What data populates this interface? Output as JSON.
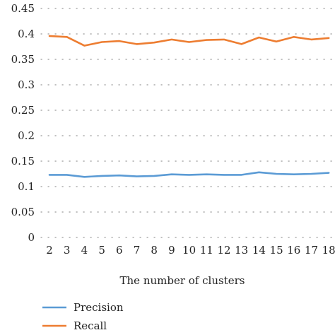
{
  "chart_data": {
    "type": "line",
    "title": "",
    "xlabel": "The number of clusters",
    "ylabel": "",
    "x": [
      2,
      3,
      4,
      5,
      6,
      7,
      8,
      9,
      10,
      11,
      12,
      13,
      14,
      15,
      16,
      17,
      18
    ],
    "ylim": [
      0,
      0.45
    ],
    "yticks": [
      "0",
      "0.05",
      "0.1",
      "0.15",
      "0.2",
      "0.25",
      "0.3",
      "0.35",
      "0.4",
      "0.45"
    ],
    "grid": "horizontal dotted",
    "legend_position": "bottom-left",
    "series": [
      {
        "name": "Precision",
        "color": "#5b9bd5",
        "values": [
          0.123,
          0.123,
          0.119,
          0.121,
          0.122,
          0.12,
          0.121,
          0.124,
          0.123,
          0.124,
          0.123,
          0.123,
          0.128,
          0.125,
          0.124,
          0.125,
          0.127
        ]
      },
      {
        "name": "Recall",
        "color": "#ed7d31",
        "values": [
          0.396,
          0.394,
          0.377,
          0.384,
          0.386,
          0.38,
          0.383,
          0.389,
          0.384,
          0.388,
          0.389,
          0.38,
          0.393,
          0.385,
          0.394,
          0.389,
          0.392
        ]
      }
    ]
  }
}
